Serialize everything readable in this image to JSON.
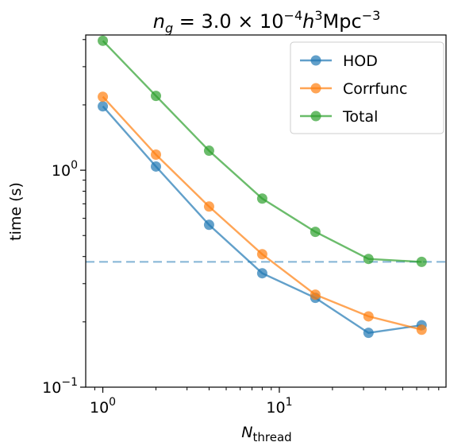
{
  "chart_data": {
    "type": "line",
    "title": {
      "n": "n",
      "n_sub": "g",
      "mid": " = 3.0 × 10",
      "exp": "−4",
      "h": "h",
      "h_exp": "3",
      "unit": "Mpc",
      "unit_exp": "−3"
    },
    "xlabel": {
      "main": "N",
      "sub": "thread"
    },
    "ylabel": "time (s)",
    "xscale": "log",
    "yscale": "log",
    "xlim": [
      0.8,
      88
    ],
    "ylim": [
      0.1,
      4.2
    ],
    "xticks": [
      {
        "value": 1,
        "base": "10",
        "exp": "0"
      },
      {
        "value": 10,
        "base": "10",
        "exp": "1"
      }
    ],
    "yticks": [
      {
        "value": 1.0,
        "base": "10",
        "exp": "0"
      },
      {
        "value": 0.1,
        "base": "10",
        "exp": "−1"
      }
    ],
    "x": [
      1,
      2,
      4,
      8,
      16,
      32,
      64
    ],
    "series": [
      {
        "name": "HOD",
        "color": "#1f77b4",
        "values": [
          1.97,
          1.04,
          0.56,
          0.335,
          0.258,
          0.178,
          0.193
        ]
      },
      {
        "name": "Corrfunc",
        "color": "#ff7f0e",
        "values": [
          2.18,
          1.18,
          0.68,
          0.41,
          0.267,
          0.212,
          0.184
        ]
      },
      {
        "name": "Total",
        "color": "#2ca02c",
        "values": [
          3.95,
          2.2,
          1.23,
          0.74,
          0.52,
          0.39,
          0.378
        ]
      }
    ],
    "hline": {
      "value": 0.378,
      "color": "#1f77b4",
      "style": "dashed"
    },
    "legend_position": "upper right",
    "grid": false
  }
}
